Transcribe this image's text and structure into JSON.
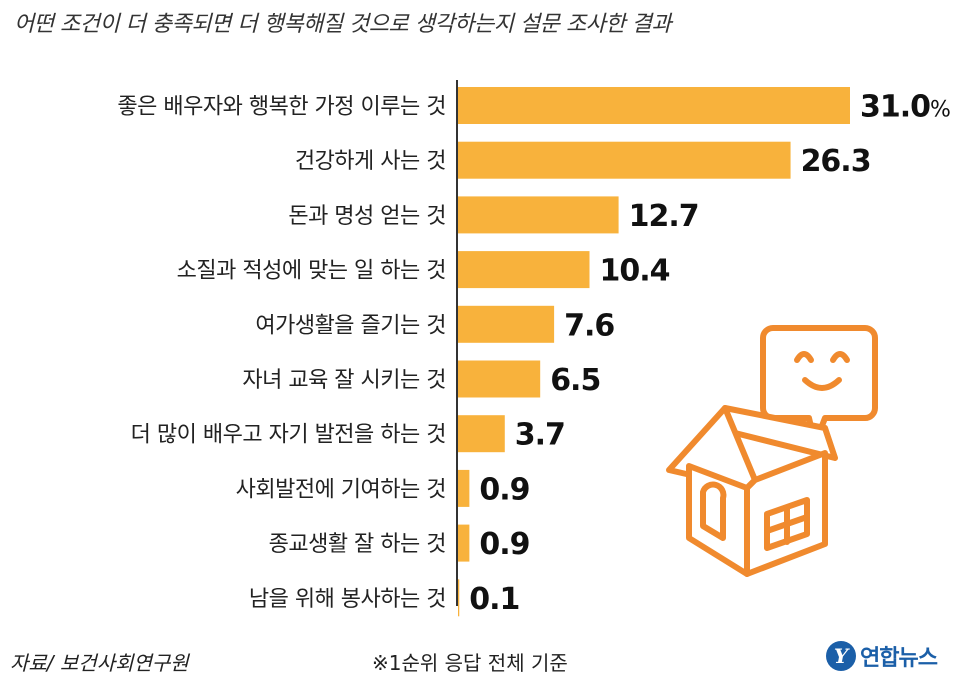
{
  "title": "어떤 조건이 더 충족되면 더 행복해질 것으로 생각하는지 설문 조사한 결과",
  "source": "자료/ 보건사회연구원",
  "note": "※1순위 응답 전체 기준",
  "logo": {
    "text": "연합뉴스",
    "mark": "Y"
  },
  "colors": {
    "bar": "#f8b23c",
    "axis": "#333333",
    "illustration": "#f08a2e"
  },
  "chart_data": {
    "type": "bar",
    "orientation": "horizontal",
    "unit": "%",
    "categories": [
      "좋은 배우자와 행복한 가정 이루는 것",
      "건강하게 사는 것",
      "돈과 명성 얻는 것",
      "소질과 적성에 맞는 일 하는 것",
      "여가생활을 즐기는 것",
      "자녀 교육 잘 시키는 것",
      "더 많이 배우고 자기 발전을 하는 것",
      "사회발전에 기여하는 것",
      "종교생활 잘 하는 것",
      "남을 위해 봉사하는 것"
    ],
    "values": [
      31.0,
      26.3,
      12.7,
      10.4,
      7.6,
      6.5,
      3.7,
      0.9,
      0.9,
      0.1
    ],
    "value_labels": [
      "31.0",
      "26.3",
      "12.7",
      "10.4",
      "7.6",
      "6.5",
      "3.7",
      "0.9",
      "0.9",
      "0.1"
    ],
    "xlim": [
      0,
      31.0
    ]
  }
}
